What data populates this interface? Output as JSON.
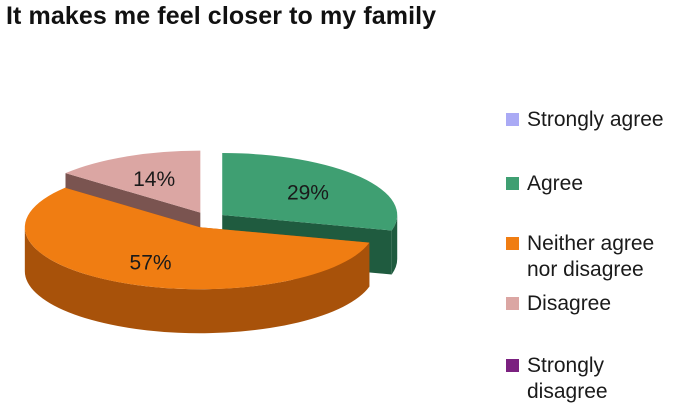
{
  "chart_data": {
    "type": "pie",
    "title": "It makes me feel closer to my family",
    "slices": [
      {
        "label": "Strongly agree",
        "value": 0,
        "color": "#aaaaf5",
        "side_color": "#7a7ab8"
      },
      {
        "label": "Agree",
        "value": 29,
        "display": "29%",
        "color": "#3f9f72",
        "side_color": "#1f5b3f"
      },
      {
        "label": "Neither agree nor disagree",
        "value": 57,
        "display": "57%",
        "color": "#f07d12",
        "side_color": "#a8520a"
      },
      {
        "label": "Disagree",
        "value": 14,
        "display": "14%",
        "color": "#dba6a3",
        "side_color": "#7a5450"
      },
      {
        "label": "Strongly disagree",
        "value": 0,
        "color": "#7b2180",
        "side_color": "#4a1250"
      }
    ],
    "legend": {
      "position": "right",
      "items": [
        {
          "lines": [
            "Strongly agree"
          ],
          "color": "#aaaaf5"
        },
        {
          "lines": [
            "Agree"
          ],
          "color": "#3f9f72"
        },
        {
          "lines": [
            "Neither agree",
            "nor disagree"
          ],
          "color": "#f07d12"
        },
        {
          "lines": [
            "Disagree"
          ],
          "color": "#dba6a3"
        },
        {
          "lines": [
            "Strongly",
            "disagree"
          ],
          "color": "#7b2180"
        }
      ]
    },
    "style": "3d-exploded"
  }
}
